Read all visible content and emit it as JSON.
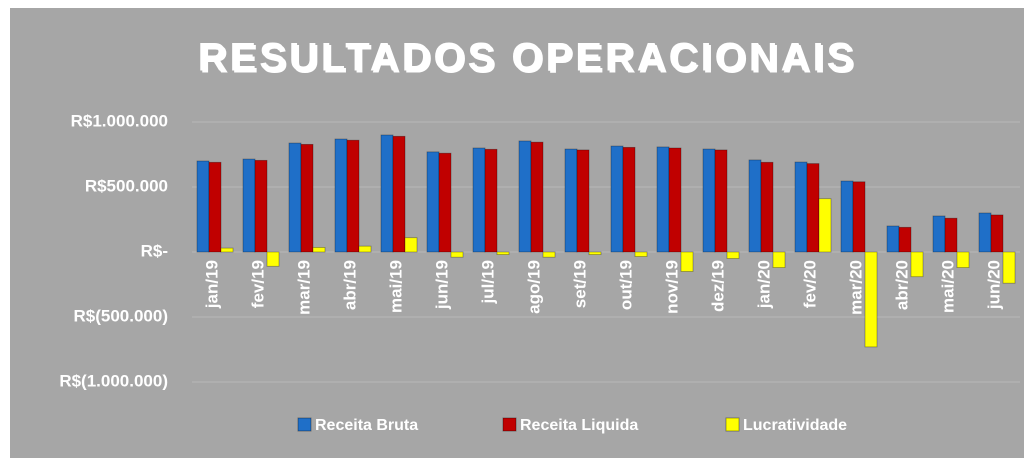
{
  "chart_data": {
    "type": "bar",
    "title": "RESULTADOS OPERACIONAIS",
    "categories": [
      "jan/19",
      "fev/19",
      "mar/19",
      "abr/19",
      "mai/19",
      "jun/19",
      "jul/19",
      "ago/19",
      "set/19",
      "out/19",
      "nov/19",
      "dez/19",
      "jan/20",
      "fev/20",
      "mar/20",
      "abr/20",
      "mai/20",
      "jun/20"
    ],
    "series": [
      {
        "name": "Receita Bruta",
        "color": "#1f6fc8",
        "values": [
          700000,
          715000,
          838000,
          869000,
          900000,
          770000,
          800000,
          854000,
          792000,
          815000,
          808000,
          792000,
          708000,
          692000,
          546000,
          200000,
          277000,
          300000
        ]
      },
      {
        "name": "Receita Liquida",
        "color": "#c00000",
        "values": [
          690000,
          705000,
          828000,
          860000,
          890000,
          760000,
          790000,
          845000,
          785000,
          805000,
          800000,
          785000,
          690000,
          680000,
          540000,
          190000,
          260000,
          285000
        ]
      },
      {
        "name": "Lucratividade",
        "color": "#ffff00",
        "values": [
          30000,
          -110000,
          35000,
          45000,
          110000,
          -40000,
          -20000,
          -40000,
          -20000,
          -35000,
          -150000,
          -50000,
          -120000,
          410000,
          -730000,
          -190000,
          -120000,
          -240000
        ]
      }
    ],
    "ylim": [
      -1000000,
      1000000
    ],
    "yticks": [
      {
        "value": 1000000,
        "label": "R$1.000.000"
      },
      {
        "value": 500000,
        "label": "R$500.000"
      },
      {
        "value": 0,
        "label": "R$-"
      },
      {
        "value": -500000,
        "label": "R$(500.000)"
      },
      {
        "value": -1000000,
        "label": "R$(1.000.000)"
      }
    ],
    "grid": true
  }
}
